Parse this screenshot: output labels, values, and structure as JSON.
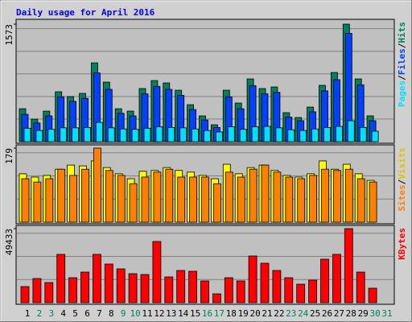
{
  "chart_data": [
    {
      "type": "bar",
      "title": "Daily usage for April 2016",
      "ylim": [
        0,
        1573
      ],
      "yticks": [
        1573
      ],
      "legend_separator": "/",
      "series": [
        {
          "name": "Pages",
          "color": "#00e0ff",
          "values": [
            180,
            150,
            165,
            185,
            185,
            190,
            258,
            185,
            170,
            165,
            180,
            200,
            190,
            185,
            170,
            150,
            130,
            200,
            165,
            200,
            205,
            185,
            160,
            150,
            170,
            190,
            205,
            280,
            190,
            140,
            null
          ]
        },
        {
          "name": "Files",
          "color": "#0040ff",
          "values": [
            366,
            250,
            345,
            600,
            540,
            580,
            920,
            700,
            380,
            345,
            640,
            740,
            700,
            620,
            430,
            290,
            190,
            600,
            440,
            750,
            640,
            660,
            330,
            280,
            400,
            680,
            830,
            1450,
            760,
            280,
            null
          ]
        },
        {
          "name": "Hits",
          "color": "#00805c",
          "values": [
            441,
            301,
            409,
            668,
            603,
            646,
            1055,
            797,
            441,
            409,
            711,
            818,
            786,
            689,
            495,
            345,
            226,
            689,
            517,
            840,
            711,
            732,
            388,
            323,
            463,
            754,
            926,
            1573,
            840,
            345,
            null
          ]
        }
      ]
    },
    {
      "type": "bar",
      "ylim": [
        0,
        179
      ],
      "yticks": [
        179
      ],
      "legend_separator": "/",
      "series": [
        {
          "name": "Sites",
          "color": "#ff8000",
          "values": [
            105,
            97,
            105,
            128,
            113,
            128,
            179,
            125,
            113,
            93,
            109,
            121,
            128,
            109,
            109,
            109,
            93,
            121,
            109,
            128,
            138,
            121,
            109,
            105,
            113,
            128,
            125,
            128,
            105,
            97,
            null
          ]
        },
        {
          "name": "Visits",
          "color": "#ffff00",
          "values": [
            117,
            109,
            113,
            128,
            138,
            136,
            148,
            132,
            117,
            105,
            123,
            125,
            132,
            125,
            121,
            113,
            105,
            140,
            117,
            132,
            138,
            125,
            113,
            109,
            117,
            148,
            128,
            140,
            117,
            101,
            null
          ]
        }
      ]
    },
    {
      "type": "bar",
      "ylim": [
        0,
        49433
      ],
      "yticks": [
        49433
      ],
      "categories": [
        "1",
        "2",
        "3",
        "4",
        "5",
        "6",
        "7",
        "8",
        "9",
        "10",
        "11",
        "12",
        "13",
        "14",
        "15",
        "16",
        "17",
        "18",
        "19",
        "20",
        "21",
        "22",
        "23",
        "24",
        "25",
        "26",
        "27",
        "28",
        "29",
        "30",
        "31"
      ],
      "category_colors": [
        "#000000",
        "#00805c",
        "#00805c",
        "#000000",
        "#000000",
        "#000000",
        "#000000",
        "#000000",
        "#00805c",
        "#00805c",
        "#000000",
        "#000000",
        "#000000",
        "#000000",
        "#000000",
        "#00805c",
        "#00805c",
        "#000000",
        "#000000",
        "#000000",
        "#000000",
        "#000000",
        "#00805c",
        "#00805c",
        "#000000",
        "#000000",
        "#000000",
        "#000000",
        "#000000",
        "#00805c",
        "#00805c"
      ],
      "series": [
        {
          "name": "KBytes",
          "color": "#ff0000",
          "values": [
            10746,
            16119,
            13433,
            32239,
            16657,
            20418,
            32239,
            25791,
            22567,
            19343,
            18806,
            40836,
            17194,
            21493,
            20955,
            14507,
            5910,
            16657,
            14507,
            31164,
            26328,
            21493,
            16657,
            12358,
            15045,
            29015,
            32239,
            49433,
            20418,
            9672,
            null
          ]
        }
      ]
    }
  ]
}
